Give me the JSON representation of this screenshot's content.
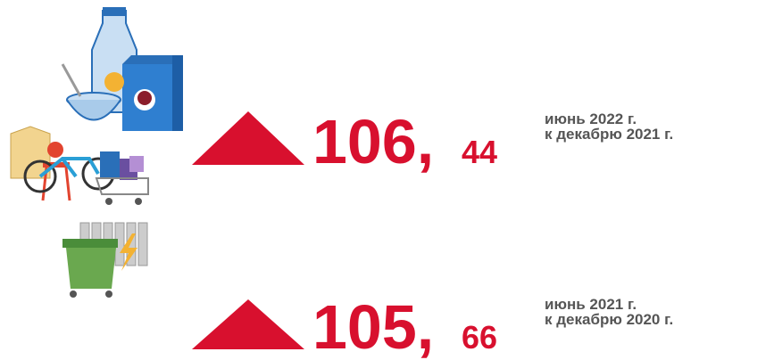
{
  "indicators": [
    {
      "integer": "106,",
      "fraction": "44",
      "period": "июнь 2022 г.",
      "base": "к декабрю 2021 г."
    },
    {
      "integer": "105,",
      "fraction": "66",
      "period": "июнь 2021 г.",
      "base": "к декабрю 2020 г."
    }
  ]
}
